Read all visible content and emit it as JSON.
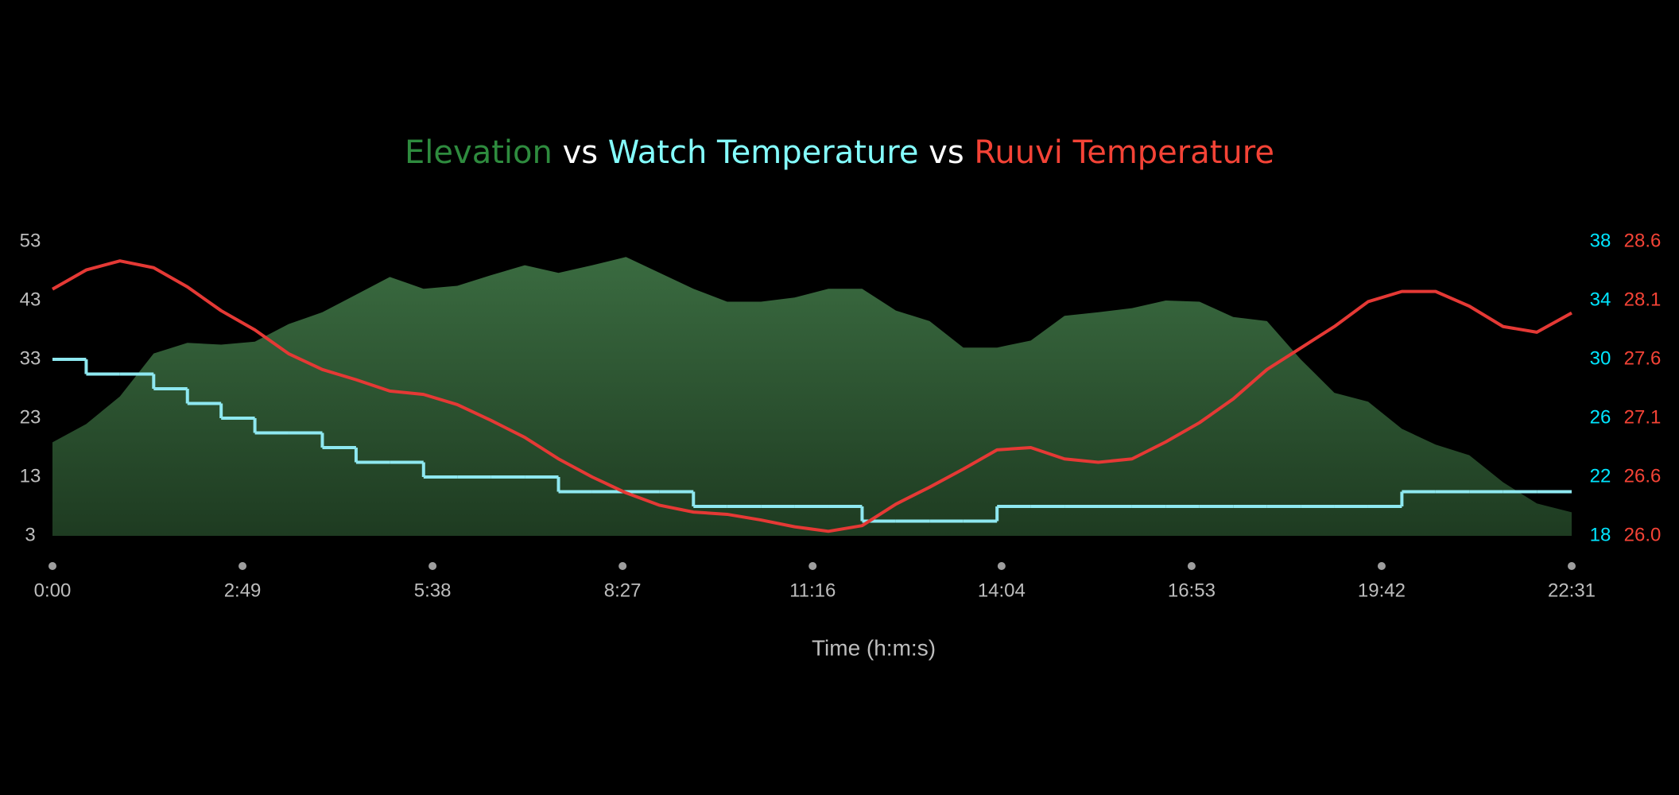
{
  "chart_data": {
    "type": "multi-axis-line",
    "title_parts": [
      "Elevation",
      "vs",
      "Watch Temperature",
      "vs",
      "Ruuvi Temperature"
    ],
    "title_colors": [
      "#2e8b3e",
      "#ffffff",
      "#84ffff",
      "#ffffff",
      "#f44336"
    ],
    "x_label": "Time (h:m:s)",
    "x": [
      0,
      30,
      60,
      90,
      120,
      150,
      180,
      210,
      240,
      270,
      300,
      330,
      360,
      390,
      420,
      450,
      480,
      510,
      540,
      570,
      600,
      630,
      660,
      690,
      720,
      750,
      780,
      810,
      840,
      870,
      900,
      930,
      960,
      990,
      1020,
      1050,
      1080,
      1110,
      1140,
      1170,
      1200,
      1230,
      1260,
      1290,
      1320,
      1351
    ],
    "xlim": [
      0,
      1351
    ],
    "xticks": [
      {
        "value": 0,
        "label": "0:00"
      },
      {
        "value": 169,
        "label": "2:49"
      },
      {
        "value": 338,
        "label": "5:38"
      },
      {
        "value": 507,
        "label": "8:27"
      },
      {
        "value": 676,
        "label": "11:16"
      },
      {
        "value": 844,
        "label": "14:04"
      },
      {
        "value": 1013,
        "label": "16:53"
      },
      {
        "value": 1182,
        "label": "19:42"
      },
      {
        "value": 1351,
        "label": "22:31"
      }
    ],
    "ylim": [
      3,
      53
    ],
    "yticks": [
      3,
      13,
      23,
      33,
      43,
      53
    ],
    "y2lim": [
      18,
      38
    ],
    "y2ticks": [
      18,
      22,
      26,
      30,
      34,
      38
    ],
    "y2_color": "#00e5ff",
    "y3lim": [
      26.04,
      28.64
    ],
    "y3ticks": [
      {
        "value": 26.04,
        "label": "26.0"
      },
      {
        "value": 26.56,
        "label": "26.6"
      },
      {
        "value": 27.08,
        "label": "27.1"
      },
      {
        "value": 27.6,
        "label": "27.6"
      },
      {
        "value": 28.12,
        "label": "28.1"
      },
      {
        "value": 28.64,
        "label": "28.6"
      }
    ],
    "y3_color": "#f44336",
    "series": [
      {
        "name": "Elevation",
        "color": "#3a6b40",
        "style": "area",
        "values": [
          18.9,
          22,
          26.7,
          34,
          35.8,
          35.5,
          36,
          39,
          41,
          44,
          47,
          45,
          45.5,
          47.3,
          49,
          47.7,
          49,
          50.4,
          47.7,
          45,
          42.8,
          42.8,
          43.5,
          45,
          45,
          41.3,
          39.5,
          35,
          35,
          36.2,
          40.4,
          41,
          41.7,
          43,
          42.8,
          40.2,
          39.5,
          33,
          27.3,
          25.8,
          21.2,
          18.5,
          16.7,
          12.1,
          8.5,
          7
        ]
      },
      {
        "name": "Watch Temperature",
        "color": "#8ee8f0",
        "style": "step",
        "axis": "y2",
        "values": [
          30,
          29,
          29,
          28,
          27,
          26,
          25,
          25,
          24,
          23,
          23,
          22,
          22,
          22,
          22,
          21,
          21,
          21,
          21,
          20,
          20,
          20,
          20,
          20,
          19,
          19,
          19,
          19,
          20,
          20,
          20,
          20,
          20,
          20,
          20,
          20,
          20,
          20,
          20,
          20,
          21,
          21,
          21,
          21,
          21,
          21
        ]
      },
      {
        "name": "Ruuvi Temperature",
        "color": "#e53935",
        "style": "line",
        "axis": "y3",
        "values": [
          28.22,
          28.39,
          28.47,
          28.41,
          28.24,
          28.03,
          27.86,
          27.65,
          27.51,
          27.42,
          27.32,
          27.29,
          27.2,
          27.06,
          26.91,
          26.72,
          26.56,
          26.42,
          26.31,
          26.25,
          26.23,
          26.18,
          26.12,
          26.08,
          26.13,
          26.32,
          26.47,
          26.63,
          26.8,
          26.82,
          26.72,
          26.69,
          26.72,
          26.87,
          27.04,
          27.25,
          27.51,
          27.7,
          27.89,
          28.11,
          28.2,
          28.2,
          28.07,
          27.89,
          27.84,
          28.01
        ]
      }
    ]
  }
}
